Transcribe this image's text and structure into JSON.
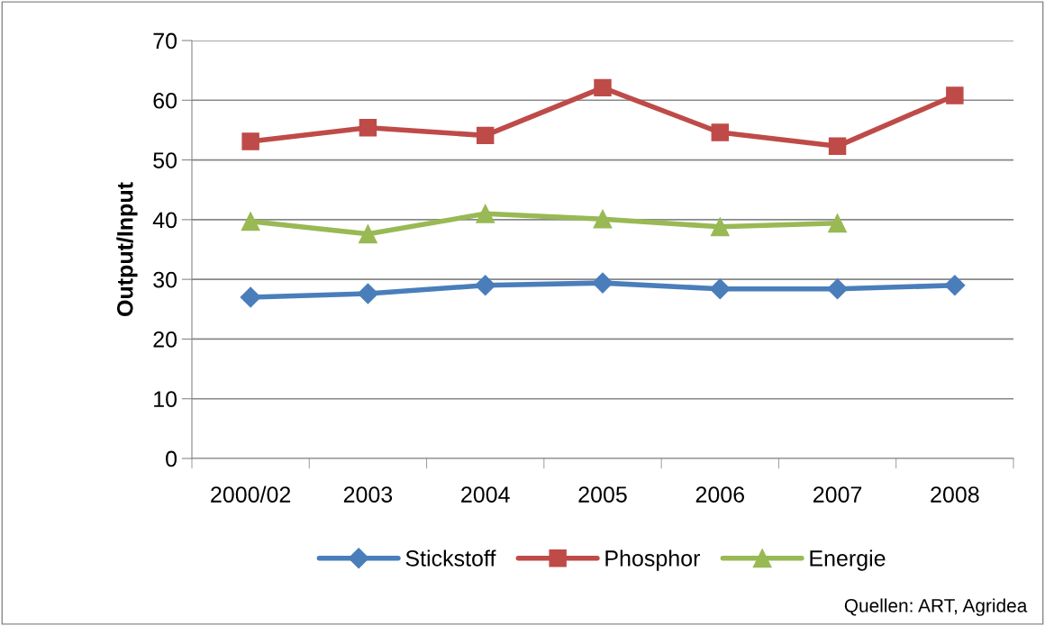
{
  "chart_data": {
    "type": "line",
    "ylabel": "Output/Input",
    "categories": [
      "2000/02",
      "2003",
      "2004",
      "2005",
      "2006",
      "2007",
      "2008"
    ],
    "series": [
      {
        "name": "Stickstoff",
        "color": "#4a7ebb",
        "marker": "diamond",
        "values": [
          27.0,
          27.6,
          29.0,
          29.4,
          28.4,
          28.4,
          29.0
        ]
      },
      {
        "name": "Phosphor",
        "color": "#be4b48",
        "marker": "square",
        "values": [
          53.1,
          55.4,
          54.1,
          62.1,
          54.6,
          52.3,
          60.8
        ]
      },
      {
        "name": "Energie",
        "color": "#98b954",
        "marker": "triangle",
        "values": [
          39.7,
          37.6,
          41.0,
          40.1,
          38.8,
          39.4,
          null
        ]
      }
    ],
    "ylim": [
      0,
      70
    ],
    "yticks": [
      0,
      10,
      20,
      30,
      40,
      50,
      60,
      70
    ],
    "grid": "y",
    "legend": "bottom",
    "line_style": "solid",
    "annotations": [
      "Quellen: ART, Agridea"
    ]
  }
}
